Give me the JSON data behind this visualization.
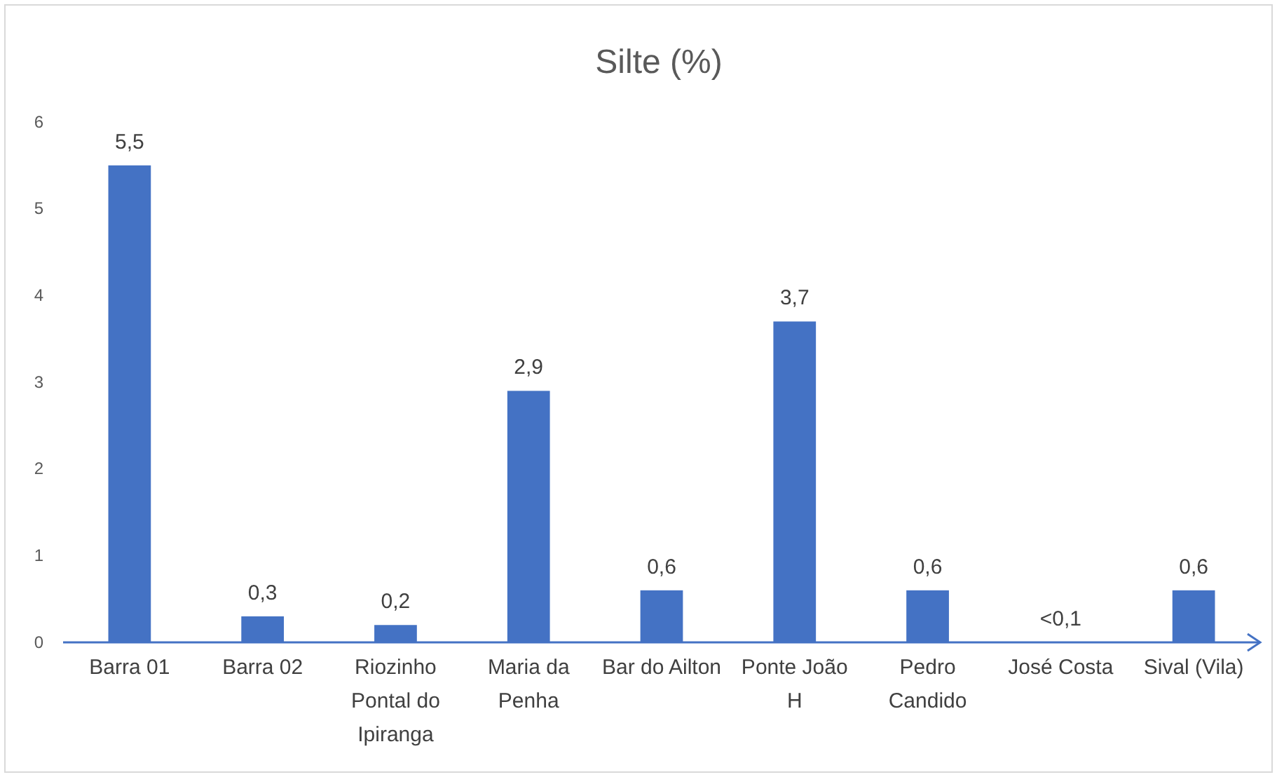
{
  "chart_data": {
    "type": "bar",
    "title": "Silte (%)",
    "categories": [
      "Barra 01",
      "Barra 02",
      "Riozinho Pontal do Ipiranga",
      "Maria da Penha",
      "Bar do Ailton",
      "Ponte João H",
      "Pedro Candido",
      "José Costa",
      "Sival (Vila)"
    ],
    "values": [
      5.5,
      0.3,
      0.2,
      2.9,
      0.6,
      3.7,
      0.6,
      0,
      0.6
    ],
    "value_labels": [
      "5,5",
      "0,3",
      "0,2",
      "2,9",
      "0,6",
      "3,7",
      "0,6",
      "<0,1",
      "0,6"
    ],
    "color": "#4472c4",
    "ylim": [
      0,
      6
    ],
    "yticks": [
      0,
      1,
      2,
      3,
      4,
      5,
      6
    ],
    "grid": false
  }
}
